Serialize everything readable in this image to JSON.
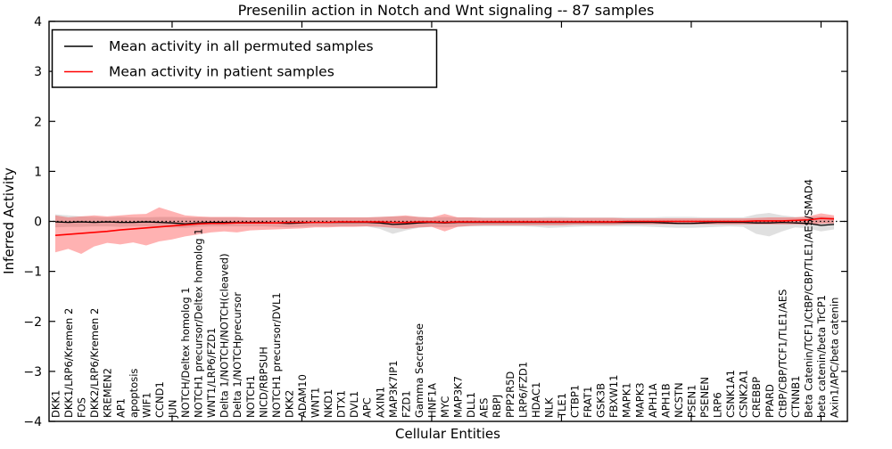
{
  "chart_data": {
    "type": "line",
    "title": "Presenilin action in Notch and Wnt signaling -- 87 samples",
    "xlabel": "Cellular Entities",
    "ylabel": "Inferred Activity",
    "ylim": [
      -4,
      4
    ],
    "yticks": [
      -4,
      -3,
      -2,
      -1,
      0,
      1,
      2,
      3,
      4
    ],
    "grid": false,
    "zero_line": true,
    "legend_position": "upper left",
    "categories": [
      "DKK1",
      "DKK1/LRP6/Kremen 2",
      "FOS",
      "DKK2/LRP6/Kremen 2",
      "KREMEN2",
      "AP1",
      "apoptosis",
      "WIF1",
      "CCND1",
      "JUN",
      "NOTCH/Deltex homolog 1",
      "NOTCH1 precursor/Deltex homolog 1",
      "WNT1/LRP6/FZD1",
      "Delta 1/NOTCH/NOTCH(cleaved)",
      "Delta 1/NOTCHprecursor",
      "NOTCH1",
      "NICD/RBPSUH",
      "NOTCH1 precursor/DVL1",
      "DKK2",
      "ADAM10",
      "WNT1",
      "NKD1",
      "DTX1",
      "DVL1",
      "APC",
      "AXIN1",
      "MAP3K7IP1",
      "FZD1",
      "Gamma Secretase",
      "HNF1A",
      "MYC",
      "MAP3K7",
      "DLL1",
      "AES",
      "RBPJ",
      "PPP2R5D",
      "LRP6/FZD1",
      "HDAC1",
      "NLK",
      "TLE1",
      "CTBP1",
      "FRAT1",
      "GSK3B",
      "FBXW11",
      "MAPK1",
      "MAPK3",
      "APH1A",
      "APH1B",
      "NCSTN",
      "PSEN1",
      "PSENEN",
      "LRP6",
      "CSNK1A1",
      "CSNK2A1",
      "CREBBP",
      "PPARD",
      "CtBP/CBP/TCF1/TLE1/AES",
      "CTNNB1",
      "Beta Catenin/TCF1/CtBP/CBP/TLE1/AES/SMAD4",
      "beta catenin/beta TrCP1",
      "Axin1/APC/beta catenin"
    ],
    "series": [
      {
        "name": "Mean activity in all permuted samples",
        "color": "#000000",
        "band_color": "#999999",
        "band_opacity": 0.3,
        "values": [
          -0.01,
          -0.02,
          -0.01,
          -0.02,
          -0.01,
          -0.02,
          -0.02,
          -0.01,
          -0.02,
          -0.03,
          -0.05,
          -0.03,
          -0.02,
          -0.02,
          -0.02,
          -0.02,
          -0.02,
          -0.03,
          -0.04,
          -0.03,
          -0.02,
          -0.02,
          -0.02,
          -0.02,
          -0.02,
          -0.03,
          -0.06,
          -0.05,
          -0.03,
          -0.02,
          -0.03,
          -0.02,
          -0.02,
          -0.02,
          -0.02,
          -0.02,
          -0.02,
          -0.02,
          -0.02,
          -0.02,
          -0.02,
          -0.02,
          -0.02,
          -0.02,
          -0.02,
          -0.02,
          -0.02,
          -0.03,
          -0.04,
          -0.04,
          -0.03,
          -0.02,
          -0.02,
          -0.02,
          -0.03,
          -0.03,
          -0.02,
          -0.03,
          -0.04,
          -0.08,
          -0.06
        ],
        "band_lower": [
          -0.12,
          -0.11,
          -0.11,
          -0.1,
          -0.1,
          -0.11,
          -0.1,
          -0.1,
          -0.11,
          -0.12,
          -0.13,
          -0.11,
          -0.1,
          -0.1,
          -0.1,
          -0.1,
          -0.1,
          -0.11,
          -0.12,
          -0.11,
          -0.1,
          -0.1,
          -0.1,
          -0.1,
          -0.1,
          -0.15,
          -0.25,
          -0.18,
          -0.13,
          -0.11,
          -0.12,
          -0.11,
          -0.1,
          -0.1,
          -0.1,
          -0.1,
          -0.1,
          -0.11,
          -0.13,
          -0.12,
          -0.11,
          -0.1,
          -0.1,
          -0.1,
          -0.1,
          -0.1,
          -0.11,
          -0.12,
          -0.13,
          -0.13,
          -0.12,
          -0.11,
          -0.1,
          -0.11,
          -0.25,
          -0.3,
          -0.2,
          -0.12,
          -0.14,
          -0.2,
          -0.16
        ],
        "band_upper": [
          0.14,
          0.12,
          0.1,
          0.09,
          0.08,
          0.09,
          0.08,
          0.08,
          0.09,
          0.09,
          0.08,
          0.08,
          0.08,
          0.08,
          0.08,
          0.08,
          0.08,
          0.08,
          0.08,
          0.08,
          0.08,
          0.08,
          0.08,
          0.08,
          0.08,
          0.09,
          0.1,
          0.1,
          0.09,
          0.08,
          0.09,
          0.08,
          0.08,
          0.08,
          0.08,
          0.08,
          0.08,
          0.08,
          0.09,
          0.09,
          0.08,
          0.08,
          0.08,
          0.08,
          0.08,
          0.08,
          0.08,
          0.09,
          0.09,
          0.09,
          0.08,
          0.08,
          0.08,
          0.08,
          0.14,
          0.17,
          0.12,
          0.09,
          0.09,
          0.1,
          0.08
        ]
      },
      {
        "name": "Mean activity in patient samples",
        "color": "#ff0000",
        "band_color": "#ff0000",
        "band_opacity": 0.3,
        "values": [
          -0.28,
          -0.26,
          -0.24,
          -0.22,
          -0.2,
          -0.17,
          -0.15,
          -0.13,
          -0.11,
          -0.09,
          -0.07,
          -0.05,
          -0.04,
          -0.04,
          -0.03,
          -0.03,
          -0.03,
          -0.03,
          -0.02,
          -0.02,
          -0.02,
          -0.02,
          -0.01,
          -0.01,
          -0.01,
          -0.01,
          -0.02,
          -0.02,
          -0.01,
          -0.01,
          -0.02,
          -0.01,
          -0.01,
          -0.01,
          -0.01,
          -0.01,
          -0.01,
          -0.01,
          -0.01,
          -0.01,
          -0.01,
          -0.01,
          -0.01,
          -0.01,
          0.0,
          0.0,
          0.0,
          0.0,
          0.0,
          0.0,
          0.0,
          0.0,
          0.0,
          0.0,
          0.01,
          0.01,
          0.01,
          0.02,
          0.03,
          0.06,
          0.05
        ],
        "band_lower": [
          -0.62,
          -0.55,
          -0.65,
          -0.5,
          -0.43,
          -0.46,
          -0.42,
          -0.48,
          -0.4,
          -0.36,
          -0.3,
          -0.26,
          -0.22,
          -0.2,
          -0.22,
          -0.18,
          -0.17,
          -0.16,
          -0.15,
          -0.14,
          -0.12,
          -0.12,
          -0.11,
          -0.11,
          -0.1,
          -0.11,
          -0.13,
          -0.15,
          -0.12,
          -0.11,
          -0.2,
          -0.11,
          -0.09,
          -0.08,
          -0.08,
          -0.08,
          -0.08,
          -0.08,
          -0.08,
          -0.08,
          -0.07,
          -0.07,
          -0.07,
          -0.07,
          -0.06,
          -0.06,
          -0.06,
          -0.06,
          -0.06,
          -0.06,
          -0.06,
          -0.06,
          -0.06,
          -0.06,
          -0.06,
          -0.06,
          -0.06,
          -0.06,
          -0.07,
          -0.05,
          -0.04
        ],
        "band_upper": [
          0.12,
          0.08,
          0.1,
          0.12,
          0.1,
          0.12,
          0.14,
          0.15,
          0.28,
          0.2,
          0.12,
          0.1,
          0.09,
          0.09,
          0.09,
          0.08,
          0.08,
          0.08,
          0.08,
          0.08,
          0.08,
          0.08,
          0.08,
          0.08,
          0.08,
          0.09,
          0.1,
          0.12,
          0.09,
          0.08,
          0.15,
          0.08,
          0.08,
          0.07,
          0.07,
          0.07,
          0.07,
          0.07,
          0.07,
          0.07,
          0.07,
          0.07,
          0.07,
          0.07,
          0.06,
          0.06,
          0.06,
          0.06,
          0.06,
          0.06,
          0.06,
          0.06,
          0.06,
          0.06,
          0.07,
          0.08,
          0.08,
          0.08,
          0.1,
          0.16,
          0.12
        ]
      }
    ]
  },
  "legend": {
    "entries": [
      {
        "label": "Mean activity in all permuted samples",
        "color": "#000000"
      },
      {
        "label": "Mean activity in patient samples",
        "color": "#ff0000"
      }
    ]
  }
}
